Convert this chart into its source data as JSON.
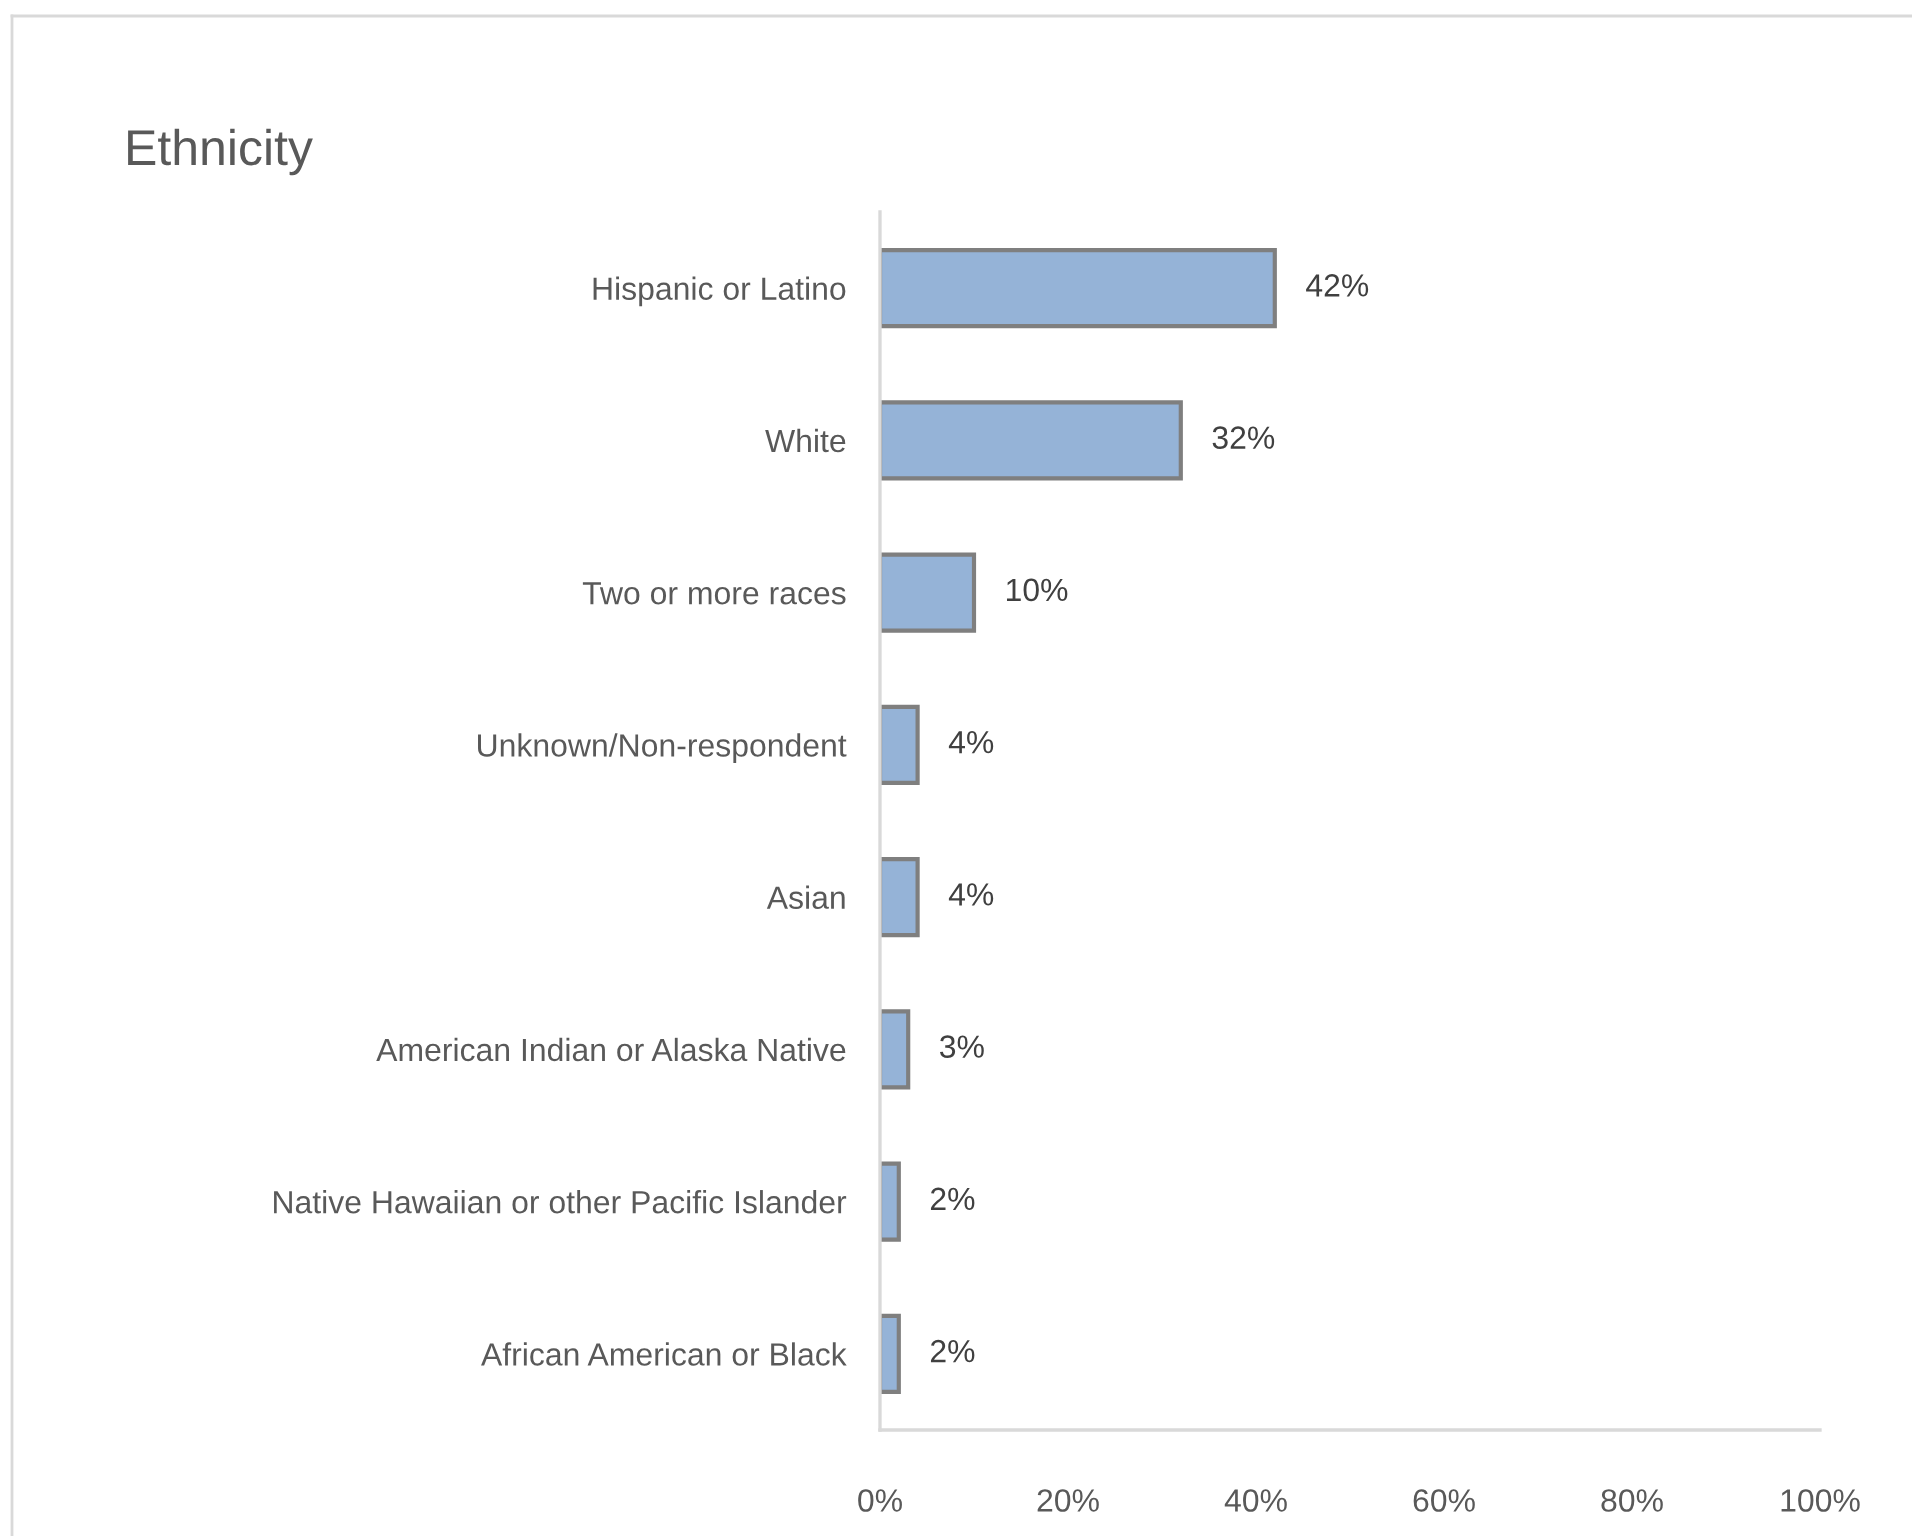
{
  "chart_data": {
    "type": "bar",
    "orientation": "horizontal",
    "title": "Ethnicity",
    "categories": [
      "Hispanic or Latino",
      "White",
      "Two or more races",
      "Unknown/Non-respondent",
      "Asian",
      "American Indian or Alaska Native",
      "Native Hawaiian or other Pacific Islander",
      "African American or Black"
    ],
    "values": [
      42,
      32,
      10,
      4,
      4,
      3,
      2,
      2
    ],
    "color": "#95b3d7",
    "value_labels": [
      "42%",
      "32%",
      "10%",
      "4%",
      "4%",
      "3%",
      "2%",
      "2%"
    ],
    "xlim": [
      0,
      100
    ],
    "xticks": [
      {
        "value": 0,
        "label": "0%"
      },
      {
        "value": 20,
        "label": "20%"
      },
      {
        "value": 40,
        "label": "40%"
      },
      {
        "value": 60,
        "label": "60%"
      },
      {
        "value": 80,
        "label": "80%"
      },
      {
        "value": 100,
        "label": "100%"
      }
    ]
  }
}
